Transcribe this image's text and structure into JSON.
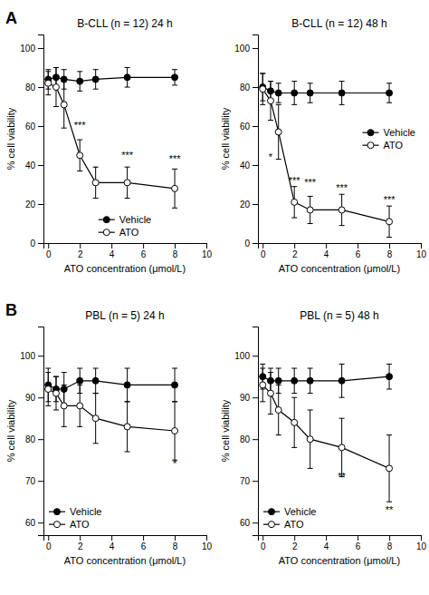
{
  "chart_data": [
    {
      "type": "line",
      "title": "B-CLL (n = 12) 24 h",
      "panel_label": "A",
      "x_label": "ATO concentration (μmol/L)",
      "y_label": "% cell viability",
      "x": [
        0,
        0.5,
        1,
        2,
        3,
        5,
        8
      ],
      "xlim": [
        -0.3,
        10
      ],
      "xticks": [
        0,
        2,
        4,
        6,
        8,
        10
      ],
      "ylim": [
        0,
        107
      ],
      "yticks": [
        0,
        20,
        40,
        60,
        80,
        100
      ],
      "grid": false,
      "legend": "lower center",
      "series": [
        {
          "name": "Vehicle",
          "color": "black",
          "marker": "filled-circle",
          "line_style": "solid",
          "values": [
            84,
            85,
            84,
            83,
            84,
            85,
            85
          ],
          "errors": [
            5,
            5,
            5,
            5,
            5,
            5,
            4
          ]
        },
        {
          "name": "ATO",
          "color": "black",
          "marker": "open-circle",
          "line_style": "solid",
          "values": [
            82,
            80,
            71,
            45,
            31,
            31,
            28
          ],
          "errors": [
            6,
            10,
            12,
            8,
            8,
            8,
            10
          ]
        }
      ],
      "annotations": [
        {
          "x": 2,
          "y": 58,
          "text": "***"
        },
        {
          "x": 3,
          "y": 37,
          "text": "-"
        },
        {
          "x": 5,
          "y": 43,
          "text": "***"
        },
        {
          "x": 8,
          "y": 41,
          "text": "***"
        }
      ]
    },
    {
      "type": "line",
      "title": "B-CLL (n = 12) 48 h",
      "x_label": "ATO concentration (μmol/L)",
      "y_label": "% cell viability",
      "x": [
        0,
        0.5,
        1,
        2,
        3,
        5,
        8
      ],
      "xlim": [
        -0.3,
        10
      ],
      "xticks": [
        0,
        2,
        4,
        6,
        8,
        10
      ],
      "ylim": [
        0,
        107
      ],
      "yticks": [
        0,
        20,
        40,
        60,
        80,
        100
      ],
      "grid": false,
      "legend": "center right",
      "series": [
        {
          "name": "Vehicle",
          "color": "black",
          "marker": "filled-circle",
          "line_style": "solid",
          "values": [
            80,
            78,
            77,
            77,
            77,
            77,
            77
          ],
          "errors": [
            7,
            5,
            5,
            6,
            5,
            6,
            5
          ]
        },
        {
          "name": "ATO",
          "color": "black",
          "marker": "open-circle",
          "line_style": "solid",
          "values": [
            79,
            73,
            57,
            21,
            17,
            17,
            11
          ],
          "errors": [
            8,
            10,
            14,
            8,
            7,
            8,
            8
          ]
        }
      ],
      "annotations": [
        {
          "x": 0.5,
          "y": 42,
          "text": "*"
        },
        {
          "x": 2,
          "y": 30,
          "text": "***"
        },
        {
          "x": 3,
          "y": 29,
          "text": "***"
        },
        {
          "x": 5,
          "y": 26,
          "text": "***"
        },
        {
          "x": 8,
          "y": 20,
          "text": "***"
        }
      ]
    },
    {
      "type": "line",
      "title": "PBL (n = 5) 24 h",
      "panel_label": "B",
      "x_label": "ATO concentration (μmol/L)",
      "y_label": "% cell viability",
      "x": [
        0,
        0.5,
        1,
        2,
        3,
        5,
        8
      ],
      "xlim": [
        -0.3,
        10
      ],
      "xticks": [
        0,
        2,
        4,
        6,
        8,
        10
      ],
      "ylim": [
        57,
        107
      ],
      "yticks": [
        60,
        70,
        80,
        90,
        100
      ],
      "grid": false,
      "legend": "lower left",
      "series": [
        {
          "name": "Vehicle",
          "color": "black",
          "marker": "filled-circle",
          "line_style": "solid",
          "values": [
            93,
            92,
            92,
            94,
            94,
            93,
            93
          ],
          "errors": [
            4,
            3,
            4,
            3,
            3,
            4,
            4
          ]
        },
        {
          "name": "ATO",
          "color": "black",
          "marker": "open-circle",
          "line_style": "solid",
          "values": [
            92,
            91,
            88,
            88,
            85,
            83,
            82
          ],
          "errors": [
            4,
            4,
            5,
            5,
            6,
            6,
            7
          ]
        }
      ],
      "annotations": [
        {
          "x": 8,
          "y": 73,
          "text": "*"
        }
      ]
    },
    {
      "type": "line",
      "title": "PBL (n = 5) 48 h",
      "x_label": "ATO concentration (μmol/L)",
      "y_label": "% cell viability",
      "x": [
        0,
        0.5,
        1,
        2,
        3,
        5,
        8
      ],
      "xlim": [
        -0.3,
        10
      ],
      "xticks": [
        0,
        2,
        4,
        6,
        8,
        10
      ],
      "ylim": [
        57,
        107
      ],
      "yticks": [
        60,
        70,
        80,
        90,
        100
      ],
      "grid": false,
      "legend": "lower left",
      "series": [
        {
          "name": "Vehicle",
          "color": "black",
          "marker": "filled-circle",
          "line_style": "solid",
          "values": [
            95,
            94,
            94,
            94,
            94,
            94,
            95
          ],
          "errors": [
            3,
            3,
            3,
            3,
            3,
            4,
            3
          ]
        },
        {
          "name": "ATO",
          "color": "black",
          "marker": "open-circle",
          "line_style": "solid",
          "values": [
            93,
            91,
            87,
            84,
            80,
            78,
            73
          ],
          "errors": [
            4,
            5,
            6,
            6,
            7,
            7,
            8
          ]
        }
      ],
      "annotations": [
        {
          "x": 5,
          "y": 70,
          "text": "**"
        },
        {
          "x": 8,
          "y": 62,
          "text": "**"
        }
      ]
    }
  ]
}
